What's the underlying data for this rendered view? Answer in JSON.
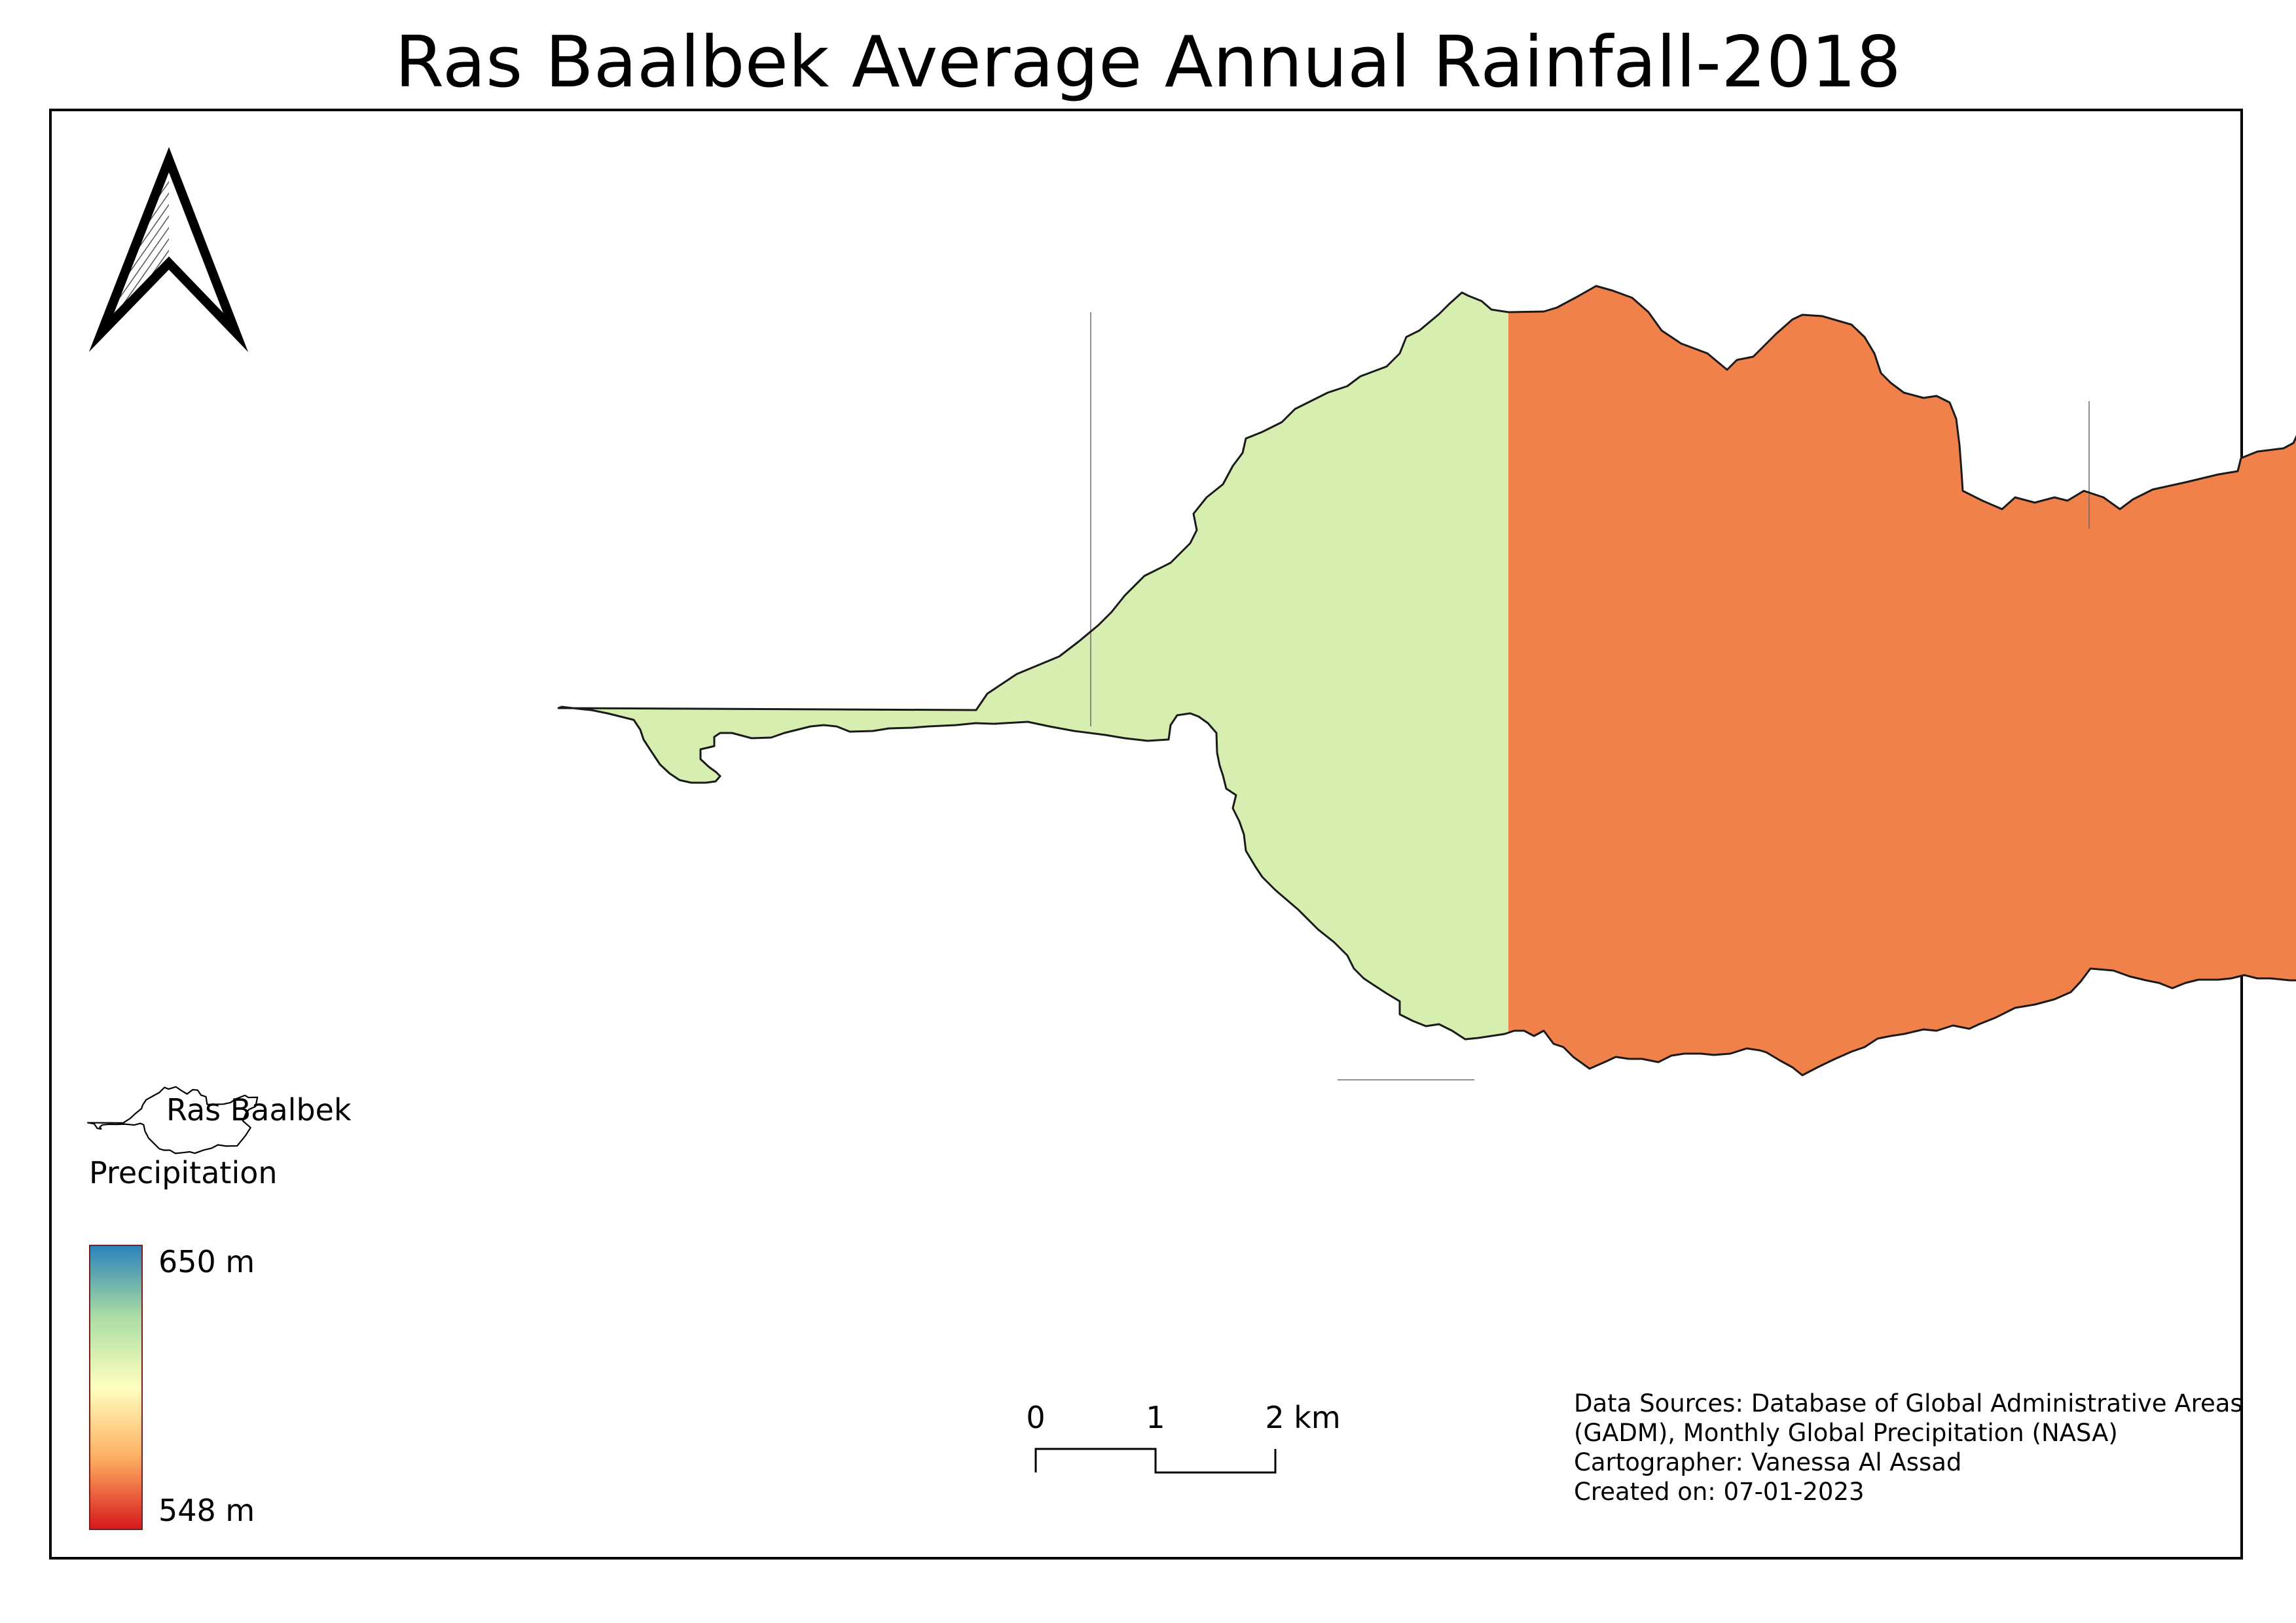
{
  "title": "Ras Baalbek Average Annual Rainfall-2018",
  "colors": {
    "west_zone": "#d6efb0",
    "central_zone": "#f1814b",
    "east_and_south_zones": "#d7191c",
    "ramp_top": "#2b83ba",
    "ramp_mid_high": "#abdda4",
    "ramp_mid": "#ffffbf",
    "ramp_mid_low": "#fdae61",
    "ramp_bottom": "#d7191c"
  },
  "legend": {
    "layer_label": "Ras Baalbek",
    "layer_icon": "boundary-outline-icon",
    "title": "Precipitation",
    "max_label": "650 m",
    "min_label": "548 m"
  },
  "scale_bar": {
    "labels": [
      "0",
      "1",
      "2 km"
    ],
    "unit": "km"
  },
  "north_arrow_icon": "north-arrow-icon",
  "credits": {
    "line1": "Data Sources: Database of Global Administrative Areas",
    "line2": "(GADM), Monthly Global Precipitation (NASA)",
    "line3": "Cartographer: Vanessa Al Assad",
    "line4": "Created on: 07-01-2023"
  }
}
